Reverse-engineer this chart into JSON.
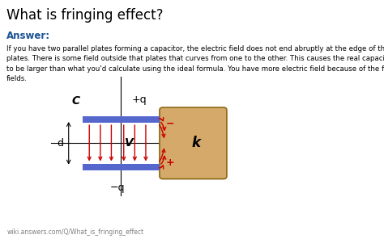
{
  "title": "What is fringing effect?",
  "answer_label": "Answer:",
  "body_text": "If you have two parallel plates forming a capacitor, the electric field does not end abruptly at the edge of the\nplates. There is some field outside that plates that curves from one to the other. This causes the real capacitance\nto be larger than what you'd calculate using the ideal formula. You have more electric field because of the fringe\nfields.",
  "footer_text": "wiki.answers.com/Q/What_is_fringing_effect",
  "bg_color": "#ffffff",
  "plate_color": "#5566cc",
  "dielectric_color": "#d4a96a",
  "dielectric_edge_color": "#8b6914",
  "arrow_color": "#cc0000",
  "answer_color": "#1a5294",
  "label_C": "C",
  "label_plusq": "+q",
  "label_minusq": "−q",
  "label_d": "d",
  "label_V": "V",
  "label_k": "k",
  "label_minus": "−",
  "label_plus": "+"
}
